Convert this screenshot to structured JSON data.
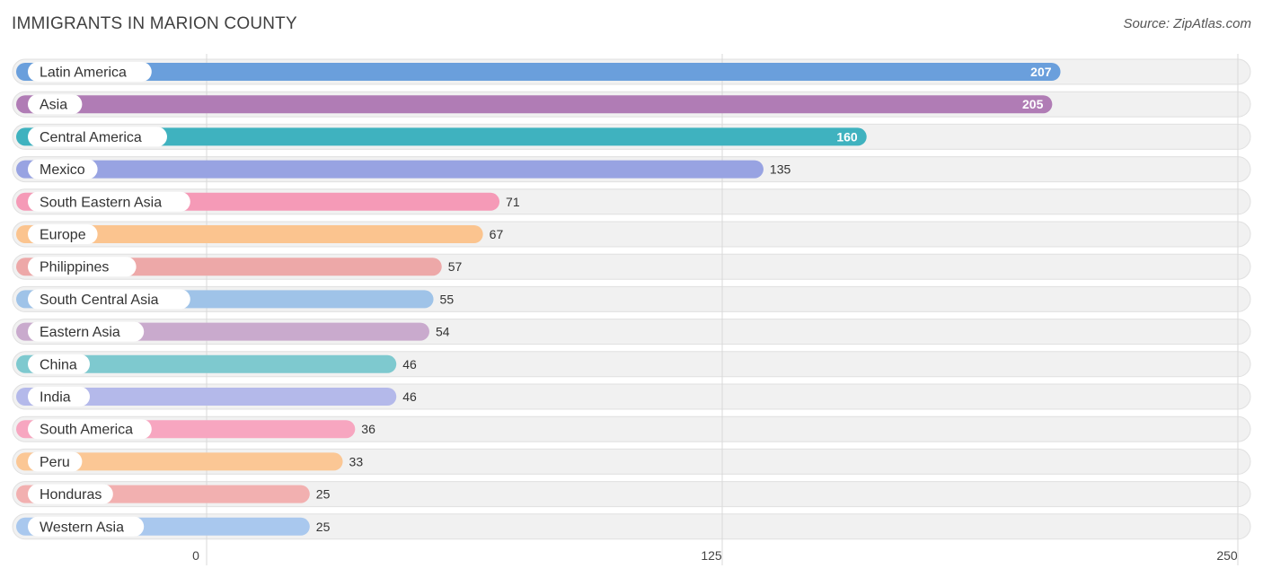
{
  "header": {
    "title": "IMMIGRANTS IN MARION COUNTY",
    "source": "Source: ZipAtlas.com"
  },
  "chart_data": {
    "type": "bar",
    "orientation": "horizontal",
    "title": "IMMIGRANTS IN MARION COUNTY",
    "categories": [
      "Latin America",
      "Asia",
      "Central America",
      "Mexico",
      "South Eastern Asia",
      "Europe",
      "Philippines",
      "South Central Asia",
      "Eastern Asia",
      "China",
      "India",
      "South America",
      "Peru",
      "Honduras",
      "Western Asia"
    ],
    "values": [
      207,
      205,
      160,
      135,
      71,
      67,
      57,
      55,
      54,
      46,
      46,
      36,
      33,
      25,
      25
    ],
    "colors": [
      "#6a9fdc",
      "#b07cb5",
      "#3fb2bf",
      "#98a3e2",
      "#f59ab7",
      "#fbc48f",
      "#eda8a8",
      "#9fc3e8",
      "#c9aacd",
      "#7ec9cf",
      "#b4b9ea",
      "#f7a6c0",
      "#fbc795",
      "#f2b0b0",
      "#a9c8ee"
    ],
    "xlim": [
      0,
      250
    ],
    "xticks": [
      0,
      125,
      250
    ],
    "xlabel": "",
    "ylabel": "",
    "grid": true,
    "legend": "none"
  }
}
